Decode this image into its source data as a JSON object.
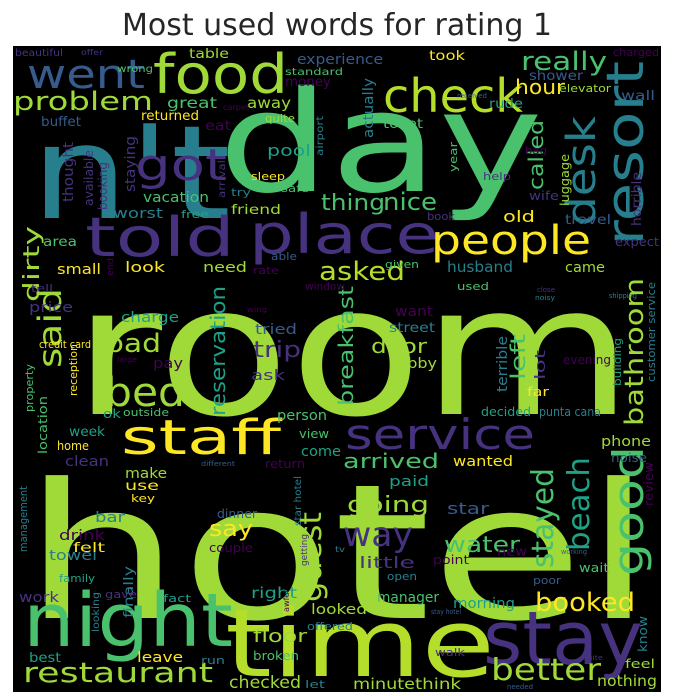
{
  "chart_data": {
    "type": "wordcloud",
    "title": "Most used words for rating 1",
    "background": "#000000",
    "colormap": "viridis",
    "words": [
      {
        "text": "hotel",
        "weight": 1.0
      },
      {
        "text": "room",
        "weight": 0.98
      },
      {
        "text": "day",
        "weight": 0.8
      },
      {
        "text": "n't",
        "weight": 0.72
      },
      {
        "text": "time",
        "weight": 0.54
      },
      {
        "text": "night",
        "weight": 0.44
      },
      {
        "text": "stay",
        "weight": 0.44
      },
      {
        "text": "place",
        "weight": 0.38
      },
      {
        "text": "food",
        "weight": 0.38
      },
      {
        "text": "told",
        "weight": 0.38
      },
      {
        "text": "resort",
        "weight": 0.38
      },
      {
        "text": "staff",
        "weight": 0.34
      },
      {
        "text": "check",
        "weight": 0.33
      },
      {
        "text": "service",
        "weight": 0.3
      },
      {
        "text": "people",
        "weight": 0.29
      },
      {
        "text": "got",
        "weight": 0.29
      },
      {
        "text": "went",
        "weight": 0.28
      },
      {
        "text": "good",
        "weight": 0.28
      },
      {
        "text": "bed",
        "weight": 0.27
      },
      {
        "text": "desk",
        "weight": 0.26
      },
      {
        "text": "restaurant",
        "weight": 0.23
      },
      {
        "text": "said",
        "weight": 0.22
      },
      {
        "text": "better",
        "weight": 0.22
      },
      {
        "text": "way",
        "weight": 0.22
      },
      {
        "text": "stayed",
        "weight": 0.22
      },
      {
        "text": "booked",
        "weight": 0.21
      },
      {
        "text": "guest",
        "weight": 0.2
      },
      {
        "text": "beach",
        "weight": 0.2
      },
      {
        "text": "problem",
        "weight": 0.2
      },
      {
        "text": "asked",
        "weight": 0.2
      },
      {
        "text": "bathroom",
        "weight": 0.19
      },
      {
        "text": "really",
        "weight": 0.19
      },
      {
        "text": "bad",
        "weight": 0.19
      },
      {
        "text": "thing",
        "weight": 0.18
      },
      {
        "text": "nice",
        "weight": 0.18
      },
      {
        "text": "water",
        "weight": 0.18
      },
      {
        "text": "going",
        "weight": 0.17
      },
      {
        "text": "dirty",
        "weight": 0.17
      },
      {
        "text": "arrived",
        "weight": 0.17
      },
      {
        "text": "called",
        "weight": 0.17
      },
      {
        "text": "trip",
        "weight": 0.16
      },
      {
        "text": "reservation",
        "weight": 0.16
      },
      {
        "text": "breakfast",
        "weight": 0.16
      },
      {
        "text": "door",
        "weight": 0.16
      },
      {
        "text": "left",
        "weight": 0.16
      },
      {
        "text": "hour",
        "weight": 0.16
      },
      {
        "text": "minute",
        "weight": 0.15
      },
      {
        "text": "think",
        "weight": 0.15
      },
      {
        "text": "nothing",
        "weight": 0.15
      },
      {
        "text": "say",
        "weight": 0.15
      },
      {
        "text": "floor",
        "weight": 0.14
      },
      {
        "text": "checked",
        "weight": 0.14
      },
      {
        "text": "little",
        "weight": 0.14
      },
      {
        "text": "great",
        "weight": 0.13
      },
      {
        "text": "pool",
        "weight": 0.13
      },
      {
        "text": "experience",
        "weight": 0.13
      },
      {
        "text": "staying",
        "weight": 0.13
      },
      {
        "text": "worst",
        "weight": 0.13
      },
      {
        "text": "vacation",
        "weight": 0.13
      },
      {
        "text": "shower",
        "weight": 0.12
      },
      {
        "text": "away",
        "weight": 0.12
      },
      {
        "text": "actually",
        "weight": 0.12
      },
      {
        "text": "old",
        "weight": 0.12
      },
      {
        "text": "came",
        "weight": 0.12
      },
      {
        "text": "husband",
        "weight": 0.12
      },
      {
        "text": "small",
        "weight": 0.12
      },
      {
        "text": "look",
        "weight": 0.12
      },
      {
        "text": "need",
        "weight": 0.12
      },
      {
        "text": "price",
        "weight": 0.12
      },
      {
        "text": "charge",
        "weight": 0.12
      },
      {
        "text": "tried",
        "weight": 0.12
      },
      {
        "text": "pay",
        "weight": 0.11
      },
      {
        "text": "ask",
        "weight": 0.11
      },
      {
        "text": "lobby",
        "weight": 0.11
      },
      {
        "text": "want",
        "weight": 0.11
      },
      {
        "text": "lot",
        "weight": 0.11
      },
      {
        "text": "terrible",
        "weight": 0.11
      },
      {
        "text": "person",
        "weight": 0.11
      },
      {
        "text": "week",
        "weight": 0.11
      },
      {
        "text": "clean",
        "weight": 0.11
      },
      {
        "text": "make",
        "weight": 0.11
      },
      {
        "text": "use",
        "weight": 0.11
      },
      {
        "text": "come",
        "weight": 0.11
      },
      {
        "text": "wanted",
        "weight": 0.11
      },
      {
        "text": "paid",
        "weight": 0.11
      },
      {
        "text": "star",
        "weight": 0.11
      },
      {
        "text": "phone",
        "weight": 0.11
      },
      {
        "text": "bar",
        "weight": 0.11
      },
      {
        "text": "drink",
        "weight": 0.11
      },
      {
        "text": "towel",
        "weight": 0.11
      },
      {
        "text": "felt",
        "weight": 0.1
      },
      {
        "text": "work",
        "weight": 0.1
      },
      {
        "text": "best",
        "weight": 0.1
      },
      {
        "text": "leave",
        "weight": 0.1
      },
      {
        "text": "right",
        "weight": 0.1
      },
      {
        "text": "manager",
        "weight": 0.1
      },
      {
        "text": "morning",
        "weight": 0.1
      },
      {
        "text": "looked",
        "weight": 0.1
      },
      {
        "text": "new",
        "weight": 0.1
      },
      {
        "text": "finally",
        "weight": 0.1
      },
      {
        "text": "money",
        "weight": 0.09
      },
      {
        "text": "standard",
        "weight": 0.08
      },
      {
        "text": "took",
        "weight": 0.09
      },
      {
        "text": "table",
        "weight": 0.09
      },
      {
        "text": "wall",
        "weight": 0.09
      },
      {
        "text": "elevator",
        "weight": 0.09
      },
      {
        "text": "rude",
        "weight": 0.09
      },
      {
        "text": "toilet",
        "weight": 0.09
      },
      {
        "text": "luggage",
        "weight": 0.09
      },
      {
        "text": "wife",
        "weight": 0.09
      },
      {
        "text": "horrible",
        "weight": 0.09
      },
      {
        "text": "travel",
        "weight": 0.09
      },
      {
        "text": "expect",
        "weight": 0.09
      },
      {
        "text": "returned",
        "weight": 0.09
      },
      {
        "text": "eat",
        "weight": 0.09
      },
      {
        "text": "buffet",
        "weight": 0.09
      },
      {
        "text": "thought",
        "weight": 0.09
      },
      {
        "text": "available",
        "weight": 0.09
      },
      {
        "text": "booking",
        "weight": 0.09
      },
      {
        "text": "friend",
        "weight": 0.09
      },
      {
        "text": "free",
        "weight": 0.08
      },
      {
        "text": "area",
        "weight": 0.09
      },
      {
        "text": "given",
        "weight": 0.08
      },
      {
        "text": "used",
        "weight": 0.08
      },
      {
        "text": "street",
        "weight": 0.08
      },
      {
        "text": "window",
        "weight": 0.08
      },
      {
        "text": "evening",
        "weight": 0.08
      },
      {
        "text": "building",
        "weight": 0.08
      },
      {
        "text": "customer service",
        "weight": 0.08
      },
      {
        "text": "far",
        "weight": 0.08
      },
      {
        "text": "decided",
        "weight": 0.08
      },
      {
        "text": "punta cana",
        "weight": 0.08
      },
      {
        "text": "view",
        "weight": 0.08
      },
      {
        "text": "home",
        "weight": 0.08
      },
      {
        "text": "location",
        "weight": 0.08
      },
      {
        "text": "return",
        "weight": 0.08
      },
      {
        "text": "key",
        "weight": 0.08
      },
      {
        "text": "noise",
        "weight": 0.08
      },
      {
        "text": "review",
        "weight": 0.08
      },
      {
        "text": "dinner",
        "weight": 0.08
      },
      {
        "text": "couple",
        "weight": 0.08
      },
      {
        "text": "order",
        "weight": 0.08
      },
      {
        "text": "point",
        "weight": 0.08
      },
      {
        "text": "wait",
        "weight": 0.08
      },
      {
        "text": "poor",
        "weight": 0.08
      },
      {
        "text": "gave",
        "weight": 0.08
      },
      {
        "text": "fact",
        "weight": 0.08
      },
      {
        "text": "offered",
        "weight": 0.08
      },
      {
        "text": "walk",
        "weight": 0.08
      },
      {
        "text": "run",
        "weight": 0.08
      },
      {
        "text": "broken",
        "weight": 0.08
      },
      {
        "text": "let",
        "weight": 0.08
      },
      {
        "text": "know",
        "weight": 0.08
      },
      {
        "text": "feel",
        "weight": 0.08
      },
      {
        "text": "ok",
        "weight": 0.08
      },
      {
        "text": "outside",
        "weight": 0.07
      },
      {
        "text": "credit card",
        "weight": 0.07
      },
      {
        "text": "reception",
        "weight": 0.07
      },
      {
        "text": "property",
        "weight": 0.07
      },
      {
        "text": "management",
        "weight": 0.07
      },
      {
        "text": "family",
        "weight": 0.07
      },
      {
        "text": "looking",
        "weight": 0.07
      },
      {
        "text": "tell",
        "weight": 0.07
      },
      {
        "text": "able",
        "weight": 0.07
      },
      {
        "text": "rate",
        "weight": 0.07
      },
      {
        "text": "safe",
        "weight": 0.07
      },
      {
        "text": "sleep",
        "weight": 0.07
      },
      {
        "text": "arrival",
        "weight": 0.07
      },
      {
        "text": "try",
        "weight": 0.07
      },
      {
        "text": "book",
        "weight": 0.07
      },
      {
        "text": "help",
        "weight": 0.07
      },
      {
        "text": "year",
        "weight": 0.07
      },
      {
        "text": "bag",
        "weight": 0.07
      },
      {
        "text": "airport",
        "weight": 0.07
      },
      {
        "text": "quite",
        "weight": 0.07
      },
      {
        "text": "beautiful",
        "weight": 0.07
      },
      {
        "text": "offer",
        "weight": 0.06
      },
      {
        "text": "wrong",
        "weight": 0.07
      },
      {
        "text": "carpet",
        "weight": 0.06
      },
      {
        "text": "received",
        "weight": 0.06
      },
      {
        "text": "charged",
        "weight": 0.07
      },
      {
        "text": "end",
        "weight": 0.06
      },
      {
        "text": "large",
        "weight": 0.06
      },
      {
        "text": "different",
        "weight": 0.06
      },
      {
        "text": "star hotel",
        "weight": 0.06
      },
      {
        "text": "getting",
        "weight": 0.06
      },
      {
        "text": "open",
        "weight": 0.06
      },
      {
        "text": "awful",
        "weight": 0.06
      },
      {
        "text": "working",
        "weight": 0.06
      },
      {
        "text": "stay hotel",
        "weight": 0.06
      },
      {
        "text": "suite",
        "weight": 0.06
      },
      {
        "text": "needed",
        "weight": 0.06
      },
      {
        "text": "close",
        "weight": 0.06
      },
      {
        "text": "noisy",
        "weight": 0.06
      },
      {
        "text": "shipping",
        "weight": 0.06
      },
      {
        "text": "tv",
        "weight": 0.06
      },
      {
        "text": "wing",
        "weight": 0.06
      }
    ]
  }
}
